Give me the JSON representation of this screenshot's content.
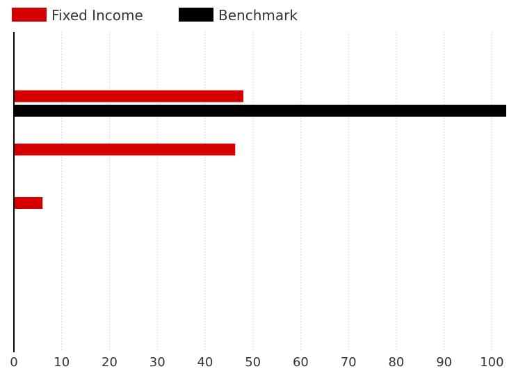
{
  "chart_data": {
    "type": "bar",
    "orientation": "horizontal",
    "title": "",
    "xlabel": "",
    "ylabel": "",
    "xlim": [
      0,
      103
    ],
    "x_ticks": [
      0,
      10,
      20,
      30,
      40,
      50,
      60,
      70,
      80,
      90,
      100
    ],
    "grid": "vertical-dotted",
    "legend_position": "top-left",
    "categories": [
      "",
      "",
      "",
      "",
      "",
      ""
    ],
    "series": [
      {
        "name": "Fixed Income",
        "color": "#d40000",
        "values": [
          null,
          48,
          46.3,
          6,
          null,
          null
        ]
      },
      {
        "name": "Benchmark",
        "color": "#000000",
        "values": [
          null,
          103,
          null,
          null,
          null,
          null
        ]
      }
    ]
  }
}
